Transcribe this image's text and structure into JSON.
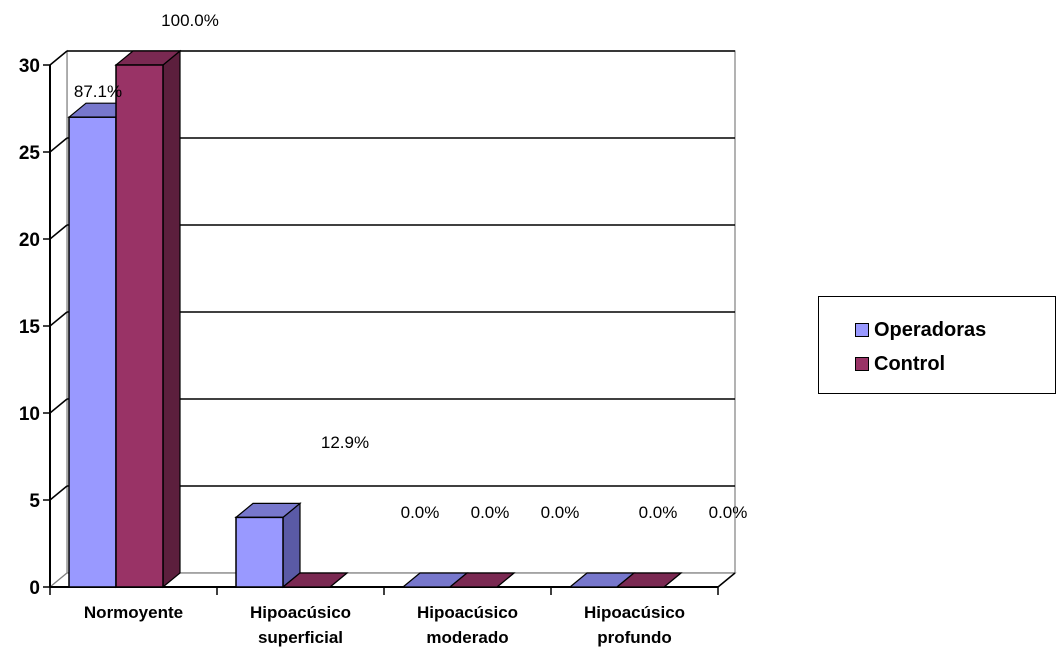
{
  "chart_data": {
    "type": "bar",
    "title": "",
    "xlabel": "",
    "ylabel": "",
    "ylim": [
      0,
      30
    ],
    "yticks": [
      0,
      5,
      10,
      15,
      20,
      25,
      30
    ],
    "grid": true,
    "legend_position": "right",
    "categories": [
      [
        "Normoyente"
      ],
      [
        "Hipoacúsico",
        "superficial"
      ],
      [
        "Hipoacúsico",
        "moderado"
      ],
      [
        "Hipoacúsico",
        "profundo"
      ]
    ],
    "series": [
      {
        "name": "Operadoras",
        "color": "#9999FF",
        "side": "#5A5AA6",
        "top": "#7777CC",
        "values": [
          27,
          4,
          0,
          0
        ],
        "labels": [
          "87.1%",
          "12.9%",
          "0.0%",
          "0.0%"
        ]
      },
      {
        "name": "Control",
        "color": "#993366",
        "side": "#5C1F3D",
        "top": "#7A2952",
        "values": [
          30,
          0,
          0,
          0
        ],
        "labels": [
          "100.0%",
          "0.0%",
          "0.0%",
          "0.0%"
        ]
      }
    ]
  }
}
